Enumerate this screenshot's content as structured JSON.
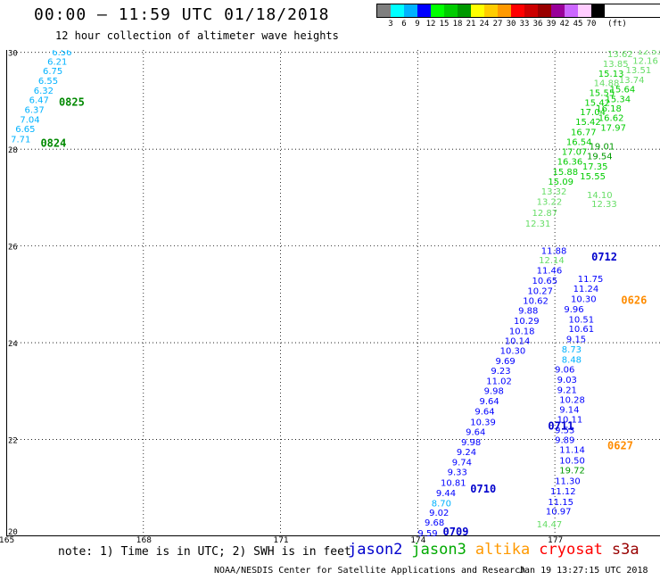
{
  "header": {
    "title": "00:00 – 11:59 UTC 01/18/2018",
    "subtitle": "12 hour collection of altimeter wave heights"
  },
  "legend": {
    "colors": [
      "#7f7f7f",
      "#00ffff",
      "#00b2ff",
      "#0000ff",
      "#00ff00",
      "#00cc00",
      "#009900",
      "#ffff00",
      "#ffcc00",
      "#ff9900",
      "#ff0000",
      "#cc0000",
      "#990000",
      "#990099",
      "#cc66ff",
      "#ffccff",
      "#000000"
    ],
    "labels": [
      "3",
      "6",
      "9",
      "12",
      "15",
      "18",
      "21",
      "24",
      "27",
      "30",
      "33",
      "36",
      "39",
      "42",
      "45",
      "70"
    ],
    "unit": "(ft)"
  },
  "map": {
    "lon_ticks": [
      165,
      168,
      171,
      174,
      177
    ],
    "lat_ticks": [
      20,
      22,
      24,
      26,
      28,
      30
    ],
    "lat_labels": [
      "20",
      "22",
      "24",
      "26",
      "28",
      "30"
    ],
    "lon_range": [
      165,
      179.3
    ],
    "lat_range": [
      20,
      30.05
    ]
  },
  "chart_data": {
    "type": "scatter",
    "title": "00:00 – 11:59 UTC 01/18/2018",
    "subtitle": "12 hour collection of altimeter wave heights",
    "xlim": [
      165,
      179.3
    ],
    "ylim": [
      20,
      30.05
    ],
    "series": [
      {
        "name": "jason3",
        "color_group": "green",
        "points": [
          {
            "lon": 165.1,
            "lat": 28.14,
            "v": "7.71"
          },
          {
            "lon": 165.2,
            "lat": 28.35,
            "v": "6.65"
          },
          {
            "lon": 165.3,
            "lat": 28.55,
            "v": "7.04"
          },
          {
            "lon": 165.4,
            "lat": 28.75,
            "v": "6.37"
          },
          {
            "lon": 165.5,
            "lat": 28.95,
            "v": "6.47"
          },
          {
            "lon": 165.6,
            "lat": 29.15,
            "v": "6.32"
          },
          {
            "lon": 165.7,
            "lat": 29.35,
            "v": "6.55"
          },
          {
            "lon": 165.8,
            "lat": 29.55,
            "v": "6.75"
          },
          {
            "lon": 165.9,
            "lat": 29.75,
            "v": "6.21"
          },
          {
            "lon": 166.0,
            "lat": 29.94,
            "v": "6.56"
          }
        ]
      },
      {
        "name": "jason3",
        "color_group": "green",
        "points": [
          {
            "lon": 176.6,
            "lat": 20.18,
            "v": "14.47"
          },
          {
            "lon": 177.8,
            "lat": 26.8,
            "v": "12.33"
          },
          {
            "lon": 177.7,
            "lat": 26.99,
            "v": "14.10"
          },
          {
            "lon": 177.55,
            "lat": 27.38,
            "v": "15.55"
          },
          {
            "lon": 177.6,
            "lat": 27.58,
            "v": "17.35"
          },
          {
            "lon": 177.7,
            "lat": 27.79,
            "v": "19.54"
          },
          {
            "lon": 177.75,
            "lat": 27.99,
            "v": "19.01"
          },
          {
            "lon": 178.0,
            "lat": 28.38,
            "v": "17.97"
          },
          {
            "lon": 177.95,
            "lat": 28.58,
            "v": "16.62"
          },
          {
            "lon": 177.9,
            "lat": 28.78,
            "v": "16.18"
          },
          {
            "lon": 178.1,
            "lat": 28.97,
            "v": "15.34"
          },
          {
            "lon": 178.2,
            "lat": 29.17,
            "v": "15.64"
          },
          {
            "lon": 178.4,
            "lat": 29.37,
            "v": "13.74"
          },
          {
            "lon": 178.55,
            "lat": 29.57,
            "v": "13.51"
          },
          {
            "lon": 178.7,
            "lat": 29.76,
            "v": "12.16"
          },
          {
            "lon": 178.8,
            "lat": 29.96,
            "v": "12.53"
          }
        ]
      },
      {
        "name": "jason3",
        "color_group": "green",
        "points": [
          {
            "lon": 176.35,
            "lat": 26.4,
            "v": "12.31"
          },
          {
            "lon": 176.5,
            "lat": 26.62,
            "v": "12.87"
          },
          {
            "lon": 176.6,
            "lat": 26.85,
            "v": "13.22"
          },
          {
            "lon": 176.7,
            "lat": 27.06,
            "v": "13.32"
          },
          {
            "lon": 176.85,
            "lat": 27.27,
            "v": "15.09"
          },
          {
            "lon": 176.95,
            "lat": 27.47,
            "v": "15.88"
          },
          {
            "lon": 177.05,
            "lat": 27.68,
            "v": "16.36"
          },
          {
            "lon": 177.15,
            "lat": 27.88,
            "v": "17.07"
          },
          {
            "lon": 177.25,
            "lat": 28.09,
            "v": "16.54"
          },
          {
            "lon": 177.35,
            "lat": 28.29,
            "v": "16.77"
          },
          {
            "lon": 177.45,
            "lat": 28.5,
            "v": "15.42"
          },
          {
            "lon": 177.55,
            "lat": 28.7,
            "v": "17.04"
          },
          {
            "lon": 177.65,
            "lat": 28.9,
            "v": "15.42"
          },
          {
            "lon": 177.75,
            "lat": 29.1,
            "v": "15.55"
          },
          {
            "lon": 177.85,
            "lat": 29.3,
            "v": "14.88"
          },
          {
            "lon": 177.95,
            "lat": 29.5,
            "v": "15.13"
          },
          {
            "lon": 178.05,
            "lat": 29.7,
            "v": "13.85"
          },
          {
            "lon": 178.15,
            "lat": 29.9,
            "v": "13.62"
          }
        ]
      },
      {
        "name": "jason2",
        "color_group": "blue",
        "points": [
          {
            "lon": 174.0,
            "lat": 20.0,
            "v": "9.59"
          },
          {
            "lon": 174.15,
            "lat": 20.22,
            "v": "9.68"
          },
          {
            "lon": 174.25,
            "lat": 20.42,
            "v": "9.02"
          },
          {
            "lon": 174.3,
            "lat": 20.62,
            "v": "8.70"
          },
          {
            "lon": 174.4,
            "lat": 20.83,
            "v": "9.44"
          },
          {
            "lon": 174.5,
            "lat": 21.04,
            "v": "10.81"
          },
          {
            "lon": 174.65,
            "lat": 21.26,
            "v": "9.33"
          },
          {
            "lon": 174.75,
            "lat": 21.47,
            "v": "9.74"
          },
          {
            "lon": 174.85,
            "lat": 21.68,
            "v": "9.24"
          },
          {
            "lon": 174.95,
            "lat": 21.88,
            "v": "9.98"
          },
          {
            "lon": 175.05,
            "lat": 22.09,
            "v": "9.64"
          },
          {
            "lon": 175.15,
            "lat": 22.3,
            "v": "10.39"
          },
          {
            "lon": 175.25,
            "lat": 22.52,
            "v": "9.64"
          },
          {
            "lon": 175.35,
            "lat": 22.73,
            "v": "9.64"
          },
          {
            "lon": 175.45,
            "lat": 22.94,
            "v": "9.98"
          },
          {
            "lon": 175.5,
            "lat": 23.14,
            "v": "11.02"
          },
          {
            "lon": 175.6,
            "lat": 23.36,
            "v": "9.23"
          },
          {
            "lon": 175.7,
            "lat": 23.56,
            "v": "9.69"
          },
          {
            "lon": 175.8,
            "lat": 23.77,
            "v": "10.30"
          },
          {
            "lon": 175.9,
            "lat": 23.97,
            "v": "10.14"
          },
          {
            "lon": 176.0,
            "lat": 24.18,
            "v": "10.18"
          },
          {
            "lon": 176.1,
            "lat": 24.39,
            "v": "10.29"
          },
          {
            "lon": 176.2,
            "lat": 24.6,
            "v": "9.88"
          },
          {
            "lon": 176.3,
            "lat": 24.8,
            "v": "10.62"
          },
          {
            "lon": 176.4,
            "lat": 25.01,
            "v": "10.27"
          },
          {
            "lon": 176.5,
            "lat": 25.22,
            "v": "10.65"
          },
          {
            "lon": 176.6,
            "lat": 25.43,
            "v": "11.46"
          },
          {
            "lon": 176.65,
            "lat": 25.64,
            "v": "12.14"
          },
          {
            "lon": 176.7,
            "lat": 25.84,
            "v": "11.88"
          }
        ]
      },
      {
        "name": "jason2",
        "color_group": "blue",
        "points": [
          {
            "lon": 176.8,
            "lat": 20.45,
            "v": "10.97"
          },
          {
            "lon": 176.85,
            "lat": 20.65,
            "v": "11.15"
          },
          {
            "lon": 176.9,
            "lat": 20.87,
            "v": "11.12"
          },
          {
            "lon": 177.0,
            "lat": 21.08,
            "v": "11.30"
          },
          {
            "lon": 177.1,
            "lat": 21.3,
            "v": "19.72"
          },
          {
            "lon": 177.1,
            "lat": 21.5,
            "v": "10.50"
          },
          {
            "lon": 177.1,
            "lat": 21.72,
            "v": "11.14"
          },
          {
            "lon": 177.0,
            "lat": 21.93,
            "v": "9.89"
          },
          {
            "lon": 177.0,
            "lat": 22.13,
            "v": "9.53"
          },
          {
            "lon": 177.05,
            "lat": 22.35,
            "v": "10.11"
          },
          {
            "lon": 177.1,
            "lat": 22.55,
            "v": "9.14"
          },
          {
            "lon": 177.1,
            "lat": 22.76,
            "v": "10.28"
          },
          {
            "lon": 177.05,
            "lat": 22.96,
            "v": "9.21"
          },
          {
            "lon": 177.05,
            "lat": 23.17,
            "v": "9.03"
          },
          {
            "lon": 177.0,
            "lat": 23.38,
            "v": "9.06"
          },
          {
            "lon": 177.15,
            "lat": 23.59,
            "v": "8.48"
          },
          {
            "lon": 177.15,
            "lat": 23.8,
            "v": "8.73"
          },
          {
            "lon": 177.25,
            "lat": 24.01,
            "v": "9.15"
          },
          {
            "lon": 177.3,
            "lat": 24.22,
            "v": "10.61"
          },
          {
            "lon": 177.3,
            "lat": 24.42,
            "v": "10.51"
          },
          {
            "lon": 177.2,
            "lat": 24.63,
            "v": "9.96"
          },
          {
            "lon": 177.35,
            "lat": 24.84,
            "v": "10.30"
          },
          {
            "lon": 177.4,
            "lat": 25.05,
            "v": "11.24"
          },
          {
            "lon": 177.5,
            "lat": 25.26,
            "v": "11.75"
          }
        ]
      }
    ],
    "pass_labels": [
      {
        "text": "0825",
        "lon": 166.15,
        "lat": 28.9,
        "color": "#008800"
      },
      {
        "text": "0824",
        "lon": 165.75,
        "lat": 28.05,
        "color": "#008800"
      },
      {
        "text": "0712",
        "lon": 177.8,
        "lat": 25.7,
        "color": "#0000cc"
      },
      {
        "text": "0626",
        "lon": 178.45,
        "lat": 24.8,
        "color": "#ff8c00"
      },
      {
        "text": "0711",
        "lon": 176.85,
        "lat": 22.2,
        "color": "#0000cc"
      },
      {
        "text": "0627",
        "lon": 178.15,
        "lat": 21.8,
        "color": "#ff8c00"
      },
      {
        "text": "0710",
        "lon": 175.15,
        "lat": 20.9,
        "color": "#0000cc"
      },
      {
        "text": "0709",
        "lon": 174.55,
        "lat": 20.02,
        "color": "#0000cc"
      }
    ]
  },
  "footer": {
    "note": "note: 1) Time is in UTC; 2) SWH is in feet",
    "satellites": [
      {
        "name": "jason2",
        "color": "#0000cc"
      },
      {
        "name": "jason3",
        "color": "#00aa00"
      },
      {
        "name": "altika",
        "color": "#ff9900"
      },
      {
        "name": "cryosat",
        "color": "#ff0000"
      },
      {
        "name": "s3a",
        "color": "#990000"
      }
    ],
    "credit": "NOAA/NESDIS Center for Satellite Applications and Research",
    "timestamp": "Jan 19 13:27:15 UTC 2018"
  }
}
